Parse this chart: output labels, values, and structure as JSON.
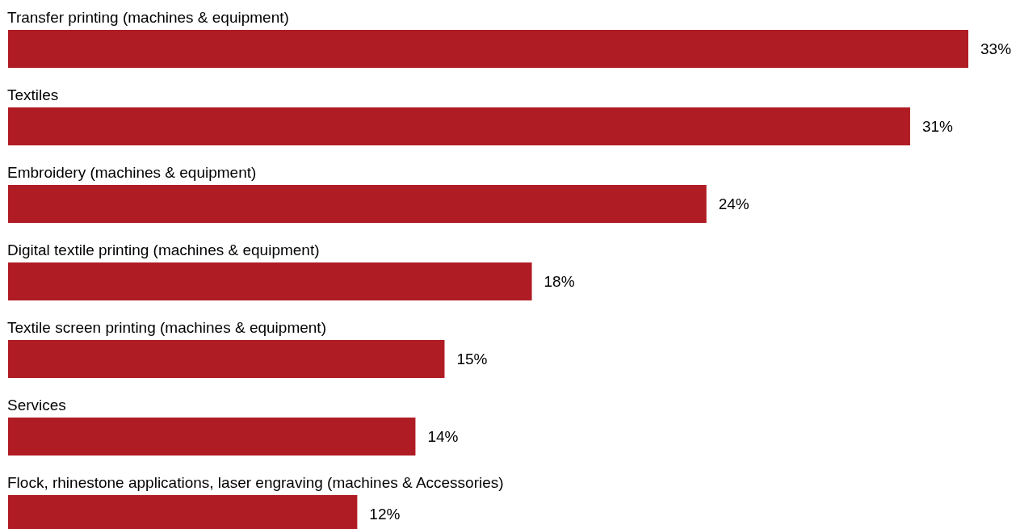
{
  "chart_data": {
    "type": "bar",
    "orientation": "horizontal",
    "categories": [
      "Transfer printing (machines & equipment)",
      "Textiles",
      "Embroidery (machines & equipment)",
      "Digital textile printing (machines & equipment)",
      "Textile screen printing (machines & equipment)",
      "Services",
      "Flock, rhinestone applications, laser engraving (machines & Accessories)"
    ],
    "values": [
      33,
      31,
      24,
      18,
      15,
      14,
      12
    ],
    "value_labels": [
      "33%",
      "31%",
      "24%",
      "18%",
      "15%",
      "14%",
      "12%"
    ],
    "color": "#b01c24"
  }
}
